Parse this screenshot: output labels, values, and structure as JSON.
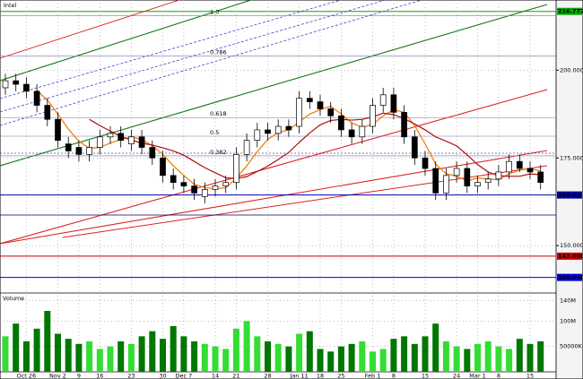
{
  "chart_data": {
    "type": "candlestick",
    "title": "Intel",
    "volume_title": "Volume",
    "categories": [
      null,
      null,
      "Oct 26",
      null,
      null,
      "Nov 2",
      null,
      "9",
      null,
      "16",
      null,
      null,
      "23",
      null,
      null,
      "30",
      null,
      "Dec 7",
      null,
      null,
      "14",
      null,
      "21",
      null,
      null,
      "28",
      null,
      null,
      "Jan 11",
      null,
      "18",
      null,
      "25",
      null,
      null,
      "Feb 1",
      null,
      "8",
      null,
      null,
      "15",
      null,
      null,
      "24",
      null,
      "Mar 1",
      null,
      "8",
      null,
      null,
      "15",
      null
    ],
    "open": [
      195,
      197,
      196,
      194,
      190,
      186,
      179,
      178,
      176,
      178,
      181,
      182,
      179,
      181,
      178,
      175,
      170,
      168,
      167,
      164,
      166,
      167,
      168,
      176,
      180,
      183,
      182,
      184,
      184,
      192,
      191,
      189,
      187,
      183,
      181,
      184,
      190,
      193,
      188,
      181,
      175,
      172,
      165,
      170,
      172,
      167,
      168,
      169,
      171,
      174,
      172,
      171
    ],
    "high": [
      199,
      199,
      198,
      196,
      192,
      188,
      181,
      180,
      180,
      183,
      184,
      184,
      183,
      183,
      180,
      177,
      172,
      170,
      169,
      168,
      169,
      170,
      178,
      182,
      185,
      185,
      186,
      186,
      194,
      194,
      193,
      191,
      189,
      185,
      186,
      192,
      195,
      195,
      190,
      183,
      177,
      174,
      172,
      174,
      174,
      170,
      171,
      173,
      176,
      176,
      174,
      173
    ],
    "low": [
      193,
      194,
      192,
      188,
      184,
      178,
      175,
      174,
      174,
      176,
      179,
      178,
      177,
      176,
      173,
      168,
      166,
      165,
      163,
      162,
      164,
      165,
      166,
      174,
      178,
      180,
      180,
      181,
      182,
      189,
      187,
      185,
      181,
      179,
      179,
      182,
      188,
      186,
      179,
      173,
      170,
      163,
      163,
      168,
      165,
      165,
      166,
      167,
      169,
      171,
      169,
      166
    ],
    "close": [
      197,
      196,
      194,
      190,
      186,
      180,
      177,
      176,
      178,
      181,
      182,
      180,
      181,
      178,
      175,
      170,
      168,
      167,
      165,
      166,
      167,
      168,
      176,
      180,
      183,
      182,
      184,
      183,
      192,
      191,
      189,
      187,
      183,
      181,
      184,
      190,
      193,
      188,
      181,
      175,
      172,
      165,
      170,
      172,
      167,
      168,
      169,
      171,
      174,
      172,
      171,
      168
    ],
    "volume": [
      70,
      95,
      60,
      85,
      120,
      75,
      65,
      55,
      60,
      45,
      50,
      60,
      55,
      70,
      80,
      65,
      90,
      70,
      60,
      55,
      50,
      45,
      85,
      100,
      70,
      60,
      55,
      50,
      75,
      80,
      45,
      40,
      50,
      55,
      60,
      40,
      45,
      65,
      70,
      55,
      70,
      95,
      60,
      50,
      45,
      55,
      60,
      50,
      45,
      65,
      55,
      60
    ],
    "up_color": "#ffffff",
    "down_color": "#000000",
    "volume_up_color": "#33dd33",
    "volume_down_color": "#007700",
    "ylim": [
      136.5,
      219
    ],
    "yticks": [
      {
        "value": 200,
        "label": "200.000"
      },
      {
        "value": 175,
        "label": "175.000"
      },
      {
        "value": 150,
        "label": "150.000"
      }
    ],
    "price_tags": [
      {
        "value": 216.777,
        "label": "216.7770",
        "color": "#00aa00"
      },
      {
        "value": 164.44,
        "label": "164.44",
        "color": "#0000aa"
      },
      {
        "value": 147,
        "label": "147.0000",
        "color": "#cc0000"
      },
      {
        "value": 140.94,
        "label": "140.9400",
        "color": "#0000dd"
      }
    ],
    "levels": [
      {
        "value": 215.5,
        "label": "1.0"
      },
      {
        "value": 204,
        "label": "0.786"
      },
      {
        "value": 186.5,
        "label": "0.618"
      },
      {
        "value": 181.2,
        "label": "0.5"
      },
      {
        "value": 175.6,
        "label": "0.382"
      }
    ],
    "volume_ylim": [
      0,
      150
    ],
    "volume_yticks": [
      {
        "value": 140,
        "label": "140M"
      },
      {
        "value": 100,
        "label": "100M"
      },
      {
        "value": 50,
        "label": "50000K"
      }
    ],
    "grid": true
  }
}
